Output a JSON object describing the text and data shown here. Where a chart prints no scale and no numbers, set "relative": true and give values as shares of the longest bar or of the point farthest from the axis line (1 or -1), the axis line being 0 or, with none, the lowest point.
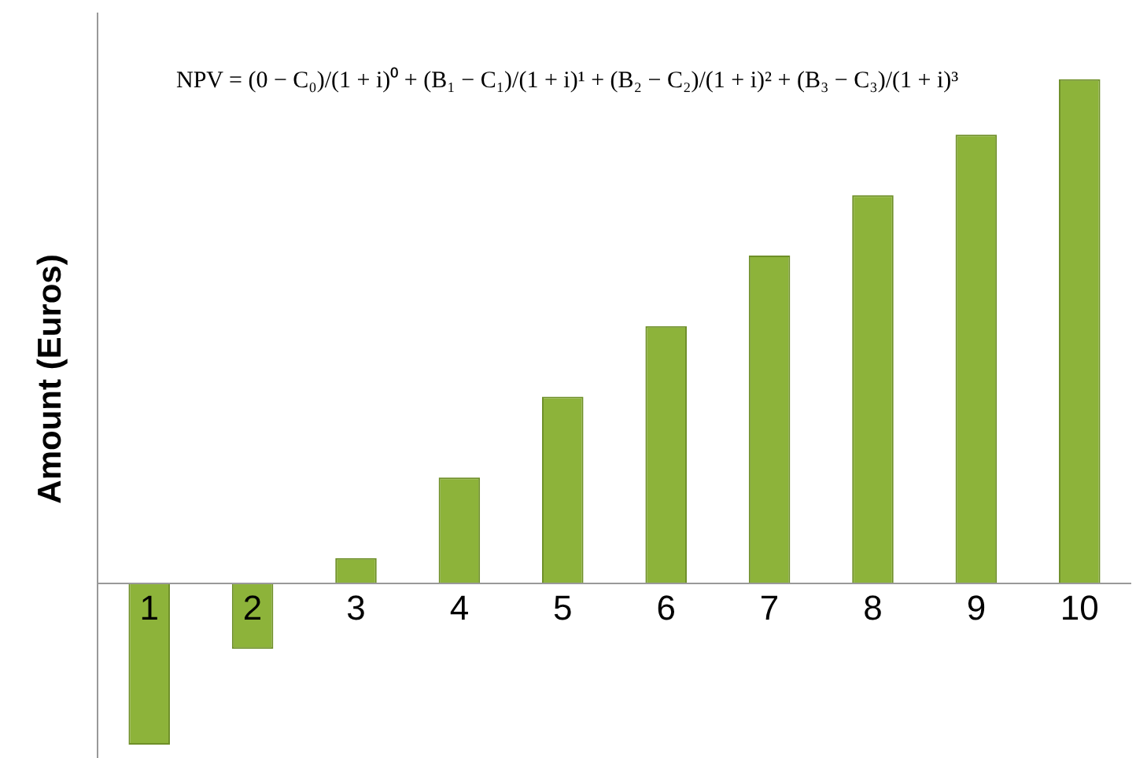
{
  "chart_data": {
    "type": "bar",
    "relative": true,
    "ylabel": "Amount (Euros)",
    "categories": [
      "1",
      "2",
      "3",
      "4",
      "5",
      "6",
      "7",
      "8",
      "9",
      "10"
    ],
    "values": [
      -0.32,
      -0.13,
      0.05,
      0.21,
      0.37,
      0.51,
      0.65,
      0.77,
      0.89,
      1
    ],
    "color": "#8db33a",
    "annotations": [
      "NPV = (0 − C₀)/(1 + i)⁰ + (B₁ − C₁)/(1 + i)¹ + (B₂ − C₂)/(1 + i)² + (B₃ − C₃)/(1 + i)³"
    ],
    "grid": false,
    "legend": false
  }
}
